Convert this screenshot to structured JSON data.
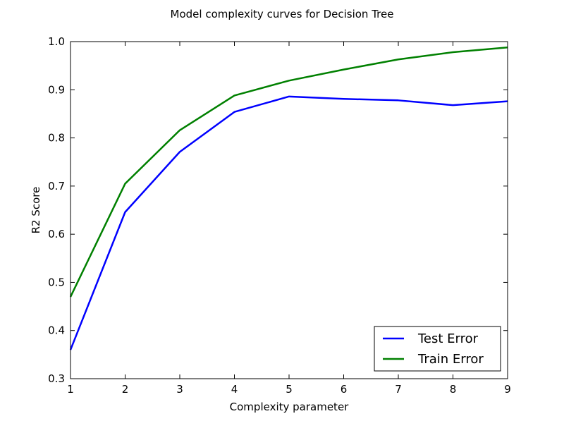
{
  "chart_data": {
    "type": "line",
    "title": "Model complexity curves for Decision Tree",
    "xlabel": "Complexity parameter",
    "ylabel": "R2 Score",
    "xlim": [
      1,
      9
    ],
    "ylim": [
      0.3,
      1.0
    ],
    "xticks": [
      "1",
      "2",
      "3",
      "4",
      "5",
      "6",
      "7",
      "8",
      "9"
    ],
    "yticks": [
      "0.3",
      "0.4",
      "0.5",
      "0.6",
      "0.7",
      "0.8",
      "0.9",
      "1.0"
    ],
    "x": [
      1,
      2,
      3,
      4,
      5,
      6,
      7,
      8,
      9
    ],
    "series": [
      {
        "name": "Test Error",
        "color": "#0000ff",
        "values": [
          0.36,
          0.646,
          0.771,
          0.854,
          0.886,
          0.881,
          0.878,
          0.868,
          0.876
        ]
      },
      {
        "name": "Train Error",
        "color": "#008000",
        "values": [
          0.47,
          0.705,
          0.816,
          0.888,
          0.919,
          0.942,
          0.963,
          0.978,
          0.988
        ]
      }
    ],
    "legend": "lower-right",
    "grid": false
  }
}
